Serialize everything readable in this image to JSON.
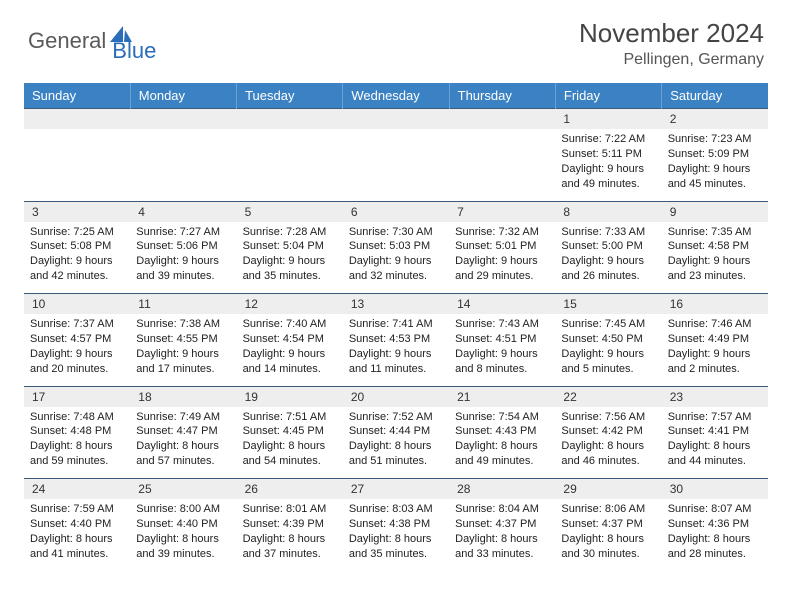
{
  "logo": {
    "general": "General",
    "blue": "Blue",
    "icon_color": "#2a6db8"
  },
  "header": {
    "title": "November 2024",
    "location": "Pellingen, Germany"
  },
  "theme": {
    "header_bg": "#3b82c4",
    "header_text": "#ffffff",
    "grid_line": "#3b5a7a",
    "daynum_bg": "#eeeeee"
  },
  "weekdays": [
    "Sunday",
    "Monday",
    "Tuesday",
    "Wednesday",
    "Thursday",
    "Friday",
    "Saturday"
  ],
  "weeks": [
    {
      "nums": [
        "",
        "",
        "",
        "",
        "",
        "1",
        "2"
      ],
      "cells": [
        null,
        null,
        null,
        null,
        null,
        {
          "sunrise": "Sunrise: 7:22 AM",
          "sunset": "Sunset: 5:11 PM",
          "day1": "Daylight: 9 hours",
          "day2": "and 49 minutes."
        },
        {
          "sunrise": "Sunrise: 7:23 AM",
          "sunset": "Sunset: 5:09 PM",
          "day1": "Daylight: 9 hours",
          "day2": "and 45 minutes."
        }
      ]
    },
    {
      "nums": [
        "3",
        "4",
        "5",
        "6",
        "7",
        "8",
        "9"
      ],
      "cells": [
        {
          "sunrise": "Sunrise: 7:25 AM",
          "sunset": "Sunset: 5:08 PM",
          "day1": "Daylight: 9 hours",
          "day2": "and 42 minutes."
        },
        {
          "sunrise": "Sunrise: 7:27 AM",
          "sunset": "Sunset: 5:06 PM",
          "day1": "Daylight: 9 hours",
          "day2": "and 39 minutes."
        },
        {
          "sunrise": "Sunrise: 7:28 AM",
          "sunset": "Sunset: 5:04 PM",
          "day1": "Daylight: 9 hours",
          "day2": "and 35 minutes."
        },
        {
          "sunrise": "Sunrise: 7:30 AM",
          "sunset": "Sunset: 5:03 PM",
          "day1": "Daylight: 9 hours",
          "day2": "and 32 minutes."
        },
        {
          "sunrise": "Sunrise: 7:32 AM",
          "sunset": "Sunset: 5:01 PM",
          "day1": "Daylight: 9 hours",
          "day2": "and 29 minutes."
        },
        {
          "sunrise": "Sunrise: 7:33 AM",
          "sunset": "Sunset: 5:00 PM",
          "day1": "Daylight: 9 hours",
          "day2": "and 26 minutes."
        },
        {
          "sunrise": "Sunrise: 7:35 AM",
          "sunset": "Sunset: 4:58 PM",
          "day1": "Daylight: 9 hours",
          "day2": "and 23 minutes."
        }
      ]
    },
    {
      "nums": [
        "10",
        "11",
        "12",
        "13",
        "14",
        "15",
        "16"
      ],
      "cells": [
        {
          "sunrise": "Sunrise: 7:37 AM",
          "sunset": "Sunset: 4:57 PM",
          "day1": "Daylight: 9 hours",
          "day2": "and 20 minutes."
        },
        {
          "sunrise": "Sunrise: 7:38 AM",
          "sunset": "Sunset: 4:55 PM",
          "day1": "Daylight: 9 hours",
          "day2": "and 17 minutes."
        },
        {
          "sunrise": "Sunrise: 7:40 AM",
          "sunset": "Sunset: 4:54 PM",
          "day1": "Daylight: 9 hours",
          "day2": "and 14 minutes."
        },
        {
          "sunrise": "Sunrise: 7:41 AM",
          "sunset": "Sunset: 4:53 PM",
          "day1": "Daylight: 9 hours",
          "day2": "and 11 minutes."
        },
        {
          "sunrise": "Sunrise: 7:43 AM",
          "sunset": "Sunset: 4:51 PM",
          "day1": "Daylight: 9 hours",
          "day2": "and 8 minutes."
        },
        {
          "sunrise": "Sunrise: 7:45 AM",
          "sunset": "Sunset: 4:50 PM",
          "day1": "Daylight: 9 hours",
          "day2": "and 5 minutes."
        },
        {
          "sunrise": "Sunrise: 7:46 AM",
          "sunset": "Sunset: 4:49 PM",
          "day1": "Daylight: 9 hours",
          "day2": "and 2 minutes."
        }
      ]
    },
    {
      "nums": [
        "17",
        "18",
        "19",
        "20",
        "21",
        "22",
        "23"
      ],
      "cells": [
        {
          "sunrise": "Sunrise: 7:48 AM",
          "sunset": "Sunset: 4:48 PM",
          "day1": "Daylight: 8 hours",
          "day2": "and 59 minutes."
        },
        {
          "sunrise": "Sunrise: 7:49 AM",
          "sunset": "Sunset: 4:47 PM",
          "day1": "Daylight: 8 hours",
          "day2": "and 57 minutes."
        },
        {
          "sunrise": "Sunrise: 7:51 AM",
          "sunset": "Sunset: 4:45 PM",
          "day1": "Daylight: 8 hours",
          "day2": "and 54 minutes."
        },
        {
          "sunrise": "Sunrise: 7:52 AM",
          "sunset": "Sunset: 4:44 PM",
          "day1": "Daylight: 8 hours",
          "day2": "and 51 minutes."
        },
        {
          "sunrise": "Sunrise: 7:54 AM",
          "sunset": "Sunset: 4:43 PM",
          "day1": "Daylight: 8 hours",
          "day2": "and 49 minutes."
        },
        {
          "sunrise": "Sunrise: 7:56 AM",
          "sunset": "Sunset: 4:42 PM",
          "day1": "Daylight: 8 hours",
          "day2": "and 46 minutes."
        },
        {
          "sunrise": "Sunrise: 7:57 AM",
          "sunset": "Sunset: 4:41 PM",
          "day1": "Daylight: 8 hours",
          "day2": "and 44 minutes."
        }
      ]
    },
    {
      "nums": [
        "24",
        "25",
        "26",
        "27",
        "28",
        "29",
        "30"
      ],
      "cells": [
        {
          "sunrise": "Sunrise: 7:59 AM",
          "sunset": "Sunset: 4:40 PM",
          "day1": "Daylight: 8 hours",
          "day2": "and 41 minutes."
        },
        {
          "sunrise": "Sunrise: 8:00 AM",
          "sunset": "Sunset: 4:40 PM",
          "day1": "Daylight: 8 hours",
          "day2": "and 39 minutes."
        },
        {
          "sunrise": "Sunrise: 8:01 AM",
          "sunset": "Sunset: 4:39 PM",
          "day1": "Daylight: 8 hours",
          "day2": "and 37 minutes."
        },
        {
          "sunrise": "Sunrise: 8:03 AM",
          "sunset": "Sunset: 4:38 PM",
          "day1": "Daylight: 8 hours",
          "day2": "and 35 minutes."
        },
        {
          "sunrise": "Sunrise: 8:04 AM",
          "sunset": "Sunset: 4:37 PM",
          "day1": "Daylight: 8 hours",
          "day2": "and 33 minutes."
        },
        {
          "sunrise": "Sunrise: 8:06 AM",
          "sunset": "Sunset: 4:37 PM",
          "day1": "Daylight: 8 hours",
          "day2": "and 30 minutes."
        },
        {
          "sunrise": "Sunrise: 8:07 AM",
          "sunset": "Sunset: 4:36 PM",
          "day1": "Daylight: 8 hours",
          "day2": "and 28 minutes."
        }
      ]
    }
  ]
}
